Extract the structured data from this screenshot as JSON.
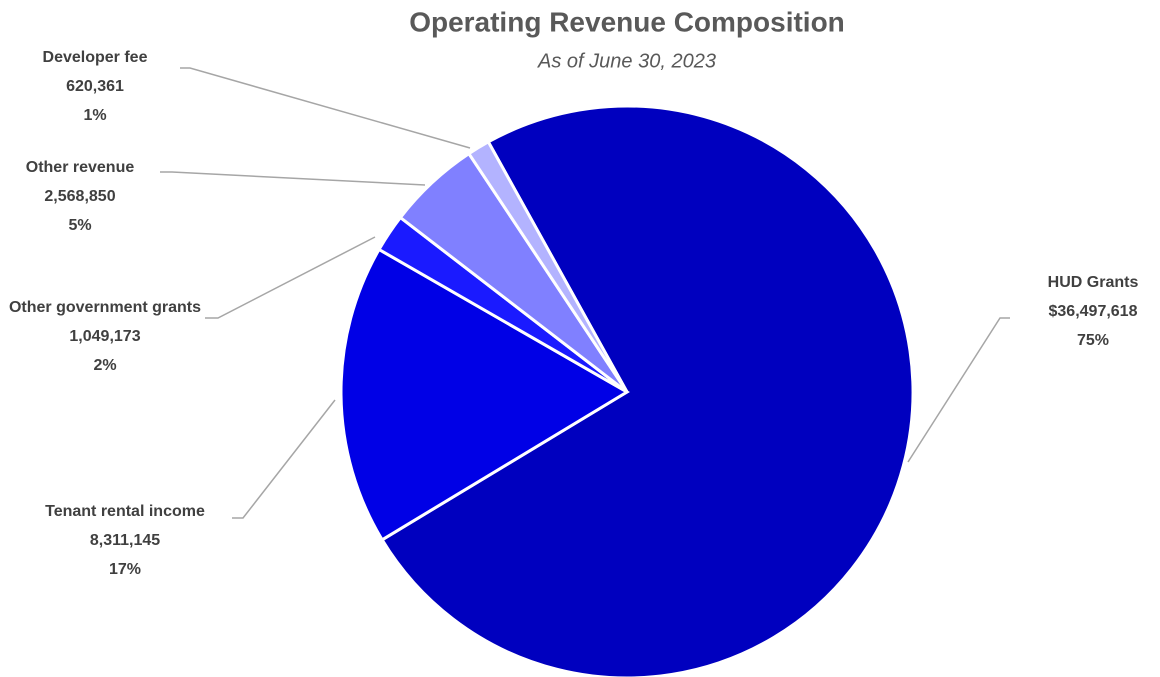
{
  "chart_data": {
    "type": "pie",
    "title": "Operating Revenue Composition",
    "subtitle": "As of June 30, 2023",
    "categories": [
      "HUD Grants",
      "Tenant rental income",
      "Other government grants",
      "Other revenue",
      "Developer fee"
    ],
    "values": [
      36497618,
      8311145,
      1049173,
      2568850,
      620361
    ],
    "value_labels": [
      "$36,497,618",
      "8,311,145",
      "1,049,173",
      "2,568,850",
      "620,361"
    ],
    "percents": [
      {
        "value": 75,
        "label": "75%"
      },
      {
        "value": 17,
        "label": "17%"
      },
      {
        "value": 2,
        "label": "2%"
      },
      {
        "value": 5,
        "label": "5%"
      },
      {
        "value": 1,
        "label": "1%"
      }
    ],
    "colors": [
      "#0000bf",
      "#0000e6",
      "#1a1aff",
      "#8080ff",
      "#b3b3ff"
    ]
  }
}
